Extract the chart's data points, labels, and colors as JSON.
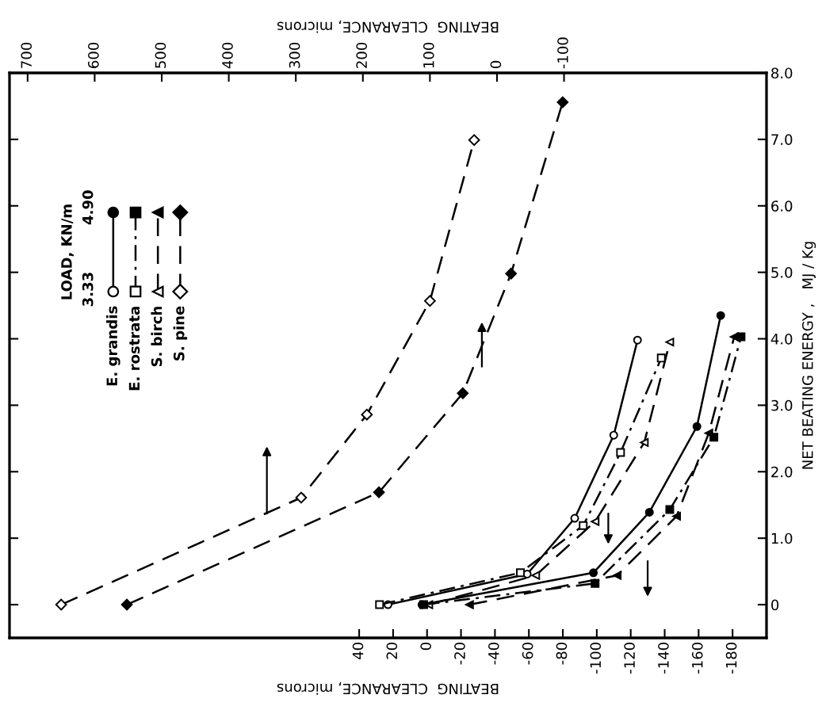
{
  "chart_data": {
    "type": "line",
    "xlabel": "BEATING  CLEARANCE, microns",
    "x2label": "BEATING  CLEARANCE, microns",
    "ylabel": "NET BEATING ENERGY ,   MJ / Kg",
    "legend_title": "LOAD, KN/m",
    "annotations": [
      "3.33",
      "4.90"
    ],
    "legend": "top left",
    "xlim": [
      246,
      -200
    ],
    "xticks": [
      40,
      20,
      0,
      -20,
      -40,
      -60,
      -80,
      -100,
      -120,
      -140,
      -160,
      -180
    ],
    "x2lim": [
      727,
      -402
    ],
    "x2ticks": [
      700,
      600,
      500,
      400,
      300,
      200,
      100,
      0,
      -100
    ],
    "ylim": [
      -0.5,
      8.0
    ],
    "yticks": [
      0,
      {
        "value": 1,
        "label": "1.0"
      },
      {
        "value": 2,
        "label": "2.0"
      },
      {
        "value": 3,
        "label": "3.0"
      },
      {
        "value": 4,
        "label": "4.0"
      },
      {
        "value": 5,
        "label": "5.0"
      },
      {
        "value": 6,
        "label": "6.0"
      },
      {
        "value": 7,
        "label": "7.0"
      },
      {
        "value": 8,
        "label": "8.0"
      }
    ],
    "series": [
      {
        "name": "E. grandis",
        "color": "#000000",
        "marker": "circle",
        "line_style": "solid",
        "x": [
          23,
          -59,
          -87,
          -110,
          -124
        ],
        "values": [
          0,
          0.46,
          1.3,
          2.55,
          3.98
        ]
      },
      {
        "name": "E. rostrata",
        "color": "#000000",
        "marker": "square",
        "line_style": "dashdot",
        "x": [
          28,
          -55,
          -92,
          -114,
          -138
        ],
        "values": [
          0,
          0.48,
          1.19,
          2.29,
          3.71
        ]
      },
      {
        "name": "S. birch",
        "color": "#000000",
        "marker": "triangle",
        "line_style": "dashed",
        "x": [
          -1,
          -64,
          -99,
          -128,
          -143
        ],
        "values": [
          0,
          0.44,
          1.25,
          2.44,
          3.95
        ]
      },
      {
        "name": "S. pine",
        "color": "#000000",
        "marker": "diamond",
        "line_style": "dashed",
        "axis": "x2",
        "x": [
          650,
          292,
          194,
          100,
          34
        ],
        "values": [
          0,
          1.61,
          2.86,
          4.57,
          6.99
        ]
      },
      {
        "color": "#000000",
        "marker": "circle",
        "line_style": "solid",
        "x": [
          3,
          -98,
          -131,
          -159,
          -173
        ],
        "values": [
          0,
          0.48,
          1.39,
          2.68,
          4.35
        ]
      },
      {
        "color": "#000000",
        "marker": "square",
        "line_style": "dashdot",
        "x": [
          2,
          -99,
          -143,
          -169,
          -185
        ],
        "values": [
          0,
          0.32,
          1.43,
          2.52,
          4.03
        ]
      },
      {
        "color": "#000000",
        "marker": "triangle",
        "line_style": "dashed",
        "x": [
          -25,
          -112,
          -147,
          -166,
          -181
        ],
        "values": [
          0,
          0.44,
          1.33,
          2.58,
          4.03
        ]
      },
      {
        "color": "#000000",
        "marker": "diamond",
        "line_style": "dashed",
        "axis": "x2",
        "x": [
          552,
          176,
          51,
          -21,
          -98
        ],
        "values": [
          0,
          1.69,
          3.18,
          4.98,
          7.56
        ]
      }
    ]
  }
}
